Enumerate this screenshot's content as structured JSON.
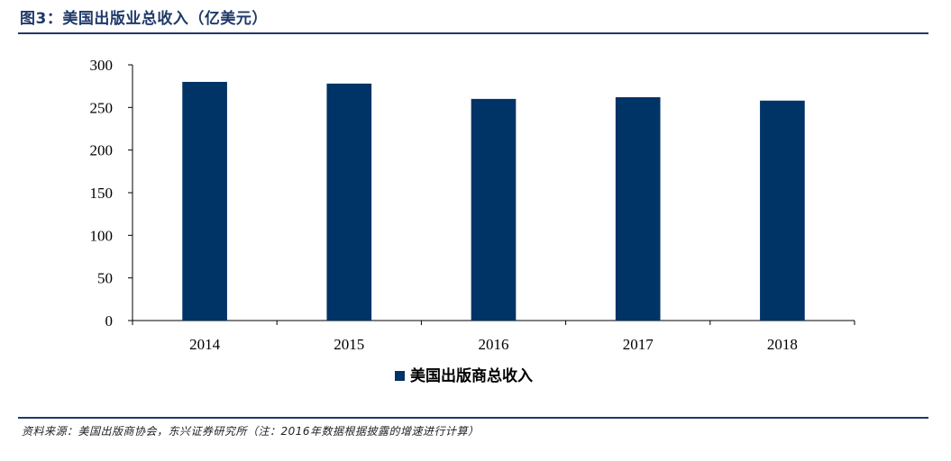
{
  "header": {
    "title": "图3：美国出版业总收入（亿美元）"
  },
  "footer": {
    "source": "资料来源：美国出版商协会，东兴证券研究所（注：2016年数据根据披露的增速进行计算）"
  },
  "colors": {
    "bar": "#003366",
    "accent": "#1f3a6a"
  },
  "chart_data": {
    "type": "bar",
    "title": "",
    "xlabel": "",
    "ylabel": "",
    "categories": [
      "2014",
      "2015",
      "2016",
      "2017",
      "2018"
    ],
    "series": [
      {
        "name": "美国出版商总收入",
        "values": [
          280,
          278,
          260,
          262,
          258
        ]
      }
    ],
    "ylim": [
      0,
      300
    ],
    "yticks": [
      "0",
      "50",
      "100",
      "150",
      "200",
      "250",
      "300"
    ],
    "legend": "bottom-center",
    "grid": false
  }
}
